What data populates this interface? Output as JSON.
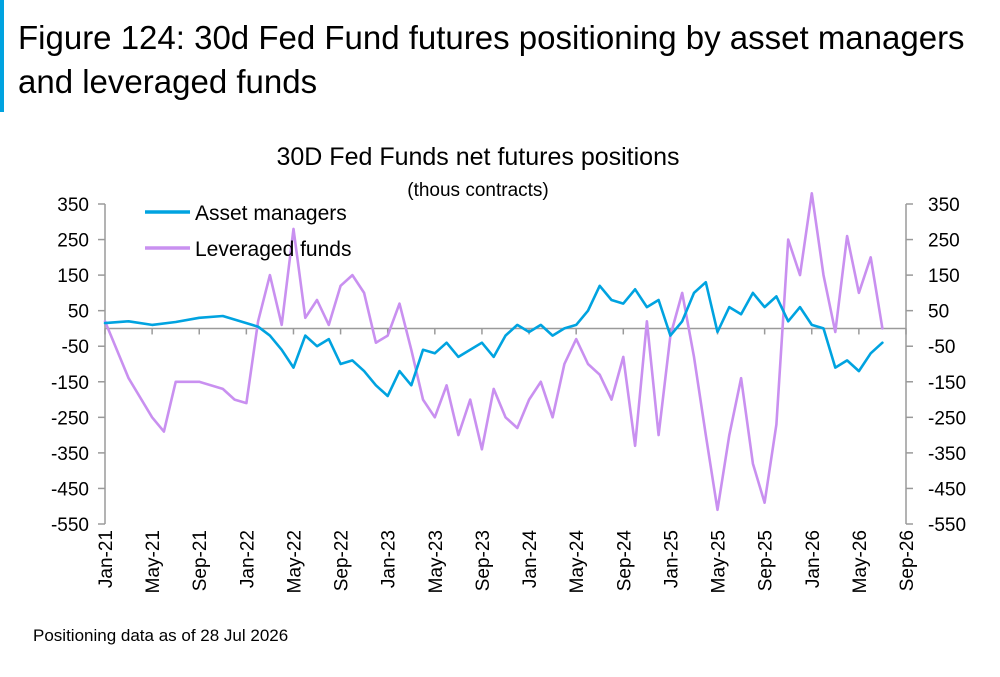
{
  "figure": {
    "title": "Figure 124: 30d Fed Fund futures positioning by asset managers and leveraged funds",
    "accent_color": "#00a3e0",
    "footnote": "Positioning data as of 28 Jul 2026"
  },
  "chart_data": {
    "type": "line",
    "title": "30D Fed Funds net futures positions",
    "subtitle": "(thous contracts)",
    "ylim": [
      -550,
      350
    ],
    "yticks": [
      350,
      250,
      150,
      50,
      -50,
      -150,
      -250,
      -350,
      -450,
      -550
    ],
    "ytick_labels": [
      "350",
      "250",
      "150",
      "50",
      "-50",
      "-150",
      "-250",
      "-350",
      "-450",
      "-550"
    ],
    "xlim": [
      "2021-01",
      "2026-09"
    ],
    "xticks": [
      "2021-01",
      "2021-05",
      "2021-09",
      "2022-01",
      "2022-05",
      "2022-09",
      "2023-01",
      "2023-05",
      "2023-09",
      "2024-01",
      "2024-05",
      "2024-09",
      "2025-01",
      "2025-05",
      "2025-09",
      "2026-01",
      "2026-05",
      "2026-09"
    ],
    "xtick_labels": [
      "Jan-21",
      "May-21",
      "Sep-21",
      "Jan-22",
      "May-22",
      "Sep-22",
      "Jan-23",
      "May-23",
      "Sep-23",
      "Jan-24",
      "May-24",
      "Sep-24",
      "Jan-25",
      "May-25",
      "Sep-25",
      "Jan-26",
      "May-26",
      "Sep-26"
    ],
    "dual_y_axis": true,
    "grid": false,
    "legend_position": "top-left",
    "series": [
      {
        "name": "Asset managers",
        "color": "#00a3e0",
        "x": [
          "2021-01",
          "2021-03",
          "2021-05",
          "2021-07",
          "2021-09",
          "2021-11",
          "2022-01",
          "2022-02",
          "2022-03",
          "2022-04",
          "2022-05",
          "2022-06",
          "2022-07",
          "2022-08",
          "2022-09",
          "2022-10",
          "2022-11",
          "2022-12",
          "2023-01",
          "2023-02",
          "2023-03",
          "2023-04",
          "2023-05",
          "2023-06",
          "2023-07",
          "2023-08",
          "2023-09",
          "2023-10",
          "2023-11",
          "2023-12",
          "2024-01",
          "2024-02",
          "2024-03",
          "2024-04",
          "2024-05",
          "2024-06",
          "2024-07",
          "2024-08",
          "2024-09",
          "2024-10",
          "2024-11",
          "2024-12",
          "2025-01",
          "2025-02",
          "2025-03",
          "2025-04",
          "2025-05",
          "2025-06",
          "2025-07",
          "2025-08",
          "2025-09",
          "2025-10",
          "2025-11",
          "2025-12",
          "2026-01",
          "2026-02",
          "2026-03",
          "2026-04",
          "2026-05",
          "2026-06",
          "2026-07"
        ],
        "y": [
          15,
          20,
          10,
          18,
          30,
          35,
          15,
          5,
          -20,
          -60,
          -110,
          -20,
          -50,
          -30,
          -100,
          -90,
          -120,
          -160,
          -190,
          -120,
          -160,
          -60,
          -70,
          -40,
          -80,
          -60,
          -40,
          -80,
          -20,
          10,
          -10,
          10,
          -20,
          0,
          10,
          50,
          120,
          80,
          70,
          110,
          60,
          80,
          -20,
          20,
          100,
          130,
          -10,
          60,
          40,
          100,
          60,
          90,
          20,
          60,
          10,
          0,
          -110,
          -90,
          -120,
          -70,
          -40
        ]
      },
      {
        "name": "Leveraged funds",
        "color": "#c990f0",
        "x": [
          "2021-01",
          "2021-03",
          "2021-05",
          "2021-06",
          "2021-07",
          "2021-09",
          "2021-11",
          "2021-12",
          "2022-01",
          "2022-02",
          "2022-03",
          "2022-04",
          "2022-05",
          "2022-06",
          "2022-07",
          "2022-08",
          "2022-09",
          "2022-10",
          "2022-11",
          "2022-12",
          "2023-01",
          "2023-02",
          "2023-03",
          "2023-04",
          "2023-05",
          "2023-06",
          "2023-07",
          "2023-08",
          "2023-09",
          "2023-10",
          "2023-11",
          "2023-12",
          "2024-01",
          "2024-02",
          "2024-03",
          "2024-04",
          "2024-05",
          "2024-06",
          "2024-07",
          "2024-08",
          "2024-09",
          "2024-10",
          "2024-11",
          "2024-12",
          "2025-01",
          "2025-02",
          "2025-03",
          "2025-04",
          "2025-05",
          "2025-06",
          "2025-07",
          "2025-08",
          "2025-09",
          "2025-10",
          "2025-11",
          "2025-12",
          "2026-01",
          "2026-02",
          "2026-03",
          "2026-04",
          "2026-05",
          "2026-06",
          "2026-07"
        ],
        "y": [
          20,
          -140,
          -250,
          -290,
          -150,
          -150,
          -170,
          -200,
          -210,
          20,
          150,
          10,
          280,
          30,
          80,
          10,
          120,
          150,
          100,
          -40,
          -20,
          70,
          -60,
          -200,
          -250,
          -160,
          -300,
          -200,
          -340,
          -170,
          -250,
          -280,
          -200,
          -150,
          -250,
          -100,
          -30,
          -100,
          -130,
          -200,
          -80,
          -330,
          20,
          -300,
          -20,
          100,
          -80,
          -300,
          -510,
          -300,
          -140,
          -380,
          -490,
          -270,
          250,
          150,
          380,
          150,
          -10,
          260,
          100,
          200,
          0
        ]
      }
    ]
  }
}
